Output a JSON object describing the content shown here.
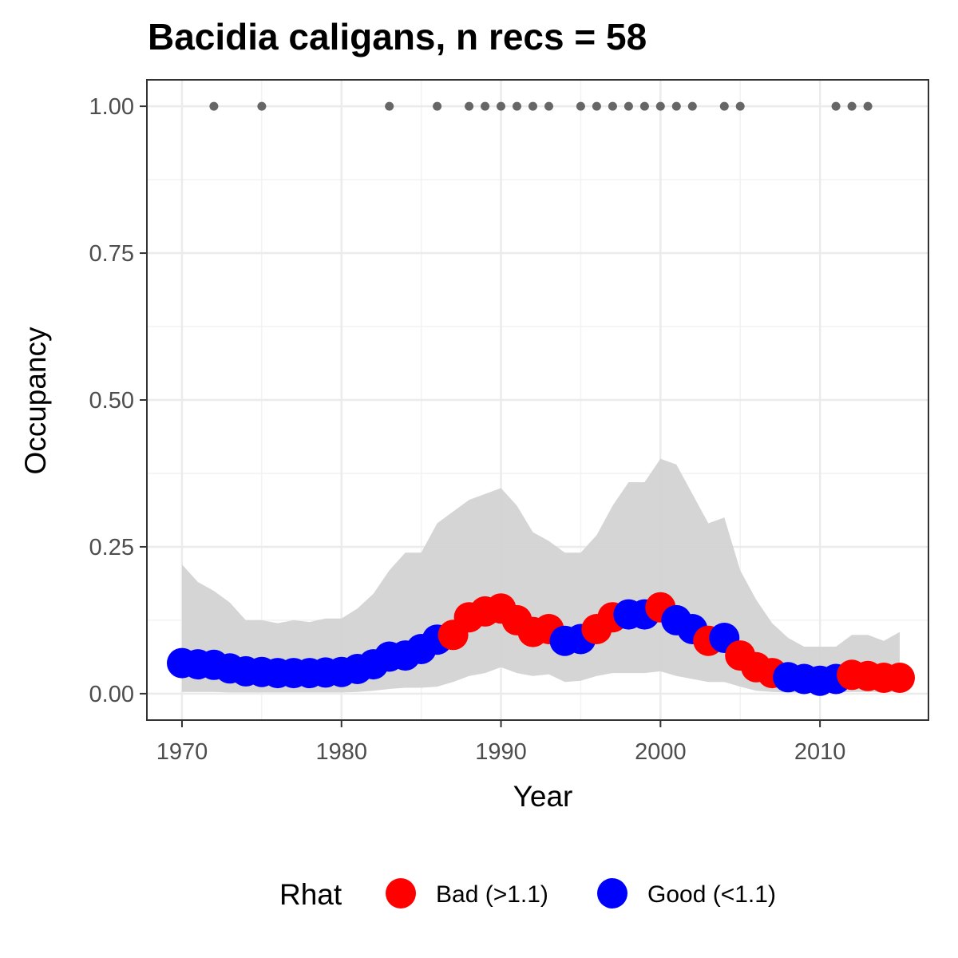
{
  "chart_data": {
    "type": "scatter",
    "title": "Bacidia caligans, n recs = 58",
    "xlabel": "Year",
    "ylabel": "Occupancy",
    "xlim": [
      1967.8,
      2016.8
    ],
    "ylim": [
      -0.045,
      1.045
    ],
    "x_ticks": [
      1970,
      1980,
      1990,
      2000,
      2010
    ],
    "x_tick_labels": [
      "1970",
      "1980",
      "1990",
      "2000",
      "2010"
    ],
    "y_ticks": [
      0,
      0.25,
      0.5,
      0.75,
      1.0
    ],
    "y_tick_labels": [
      "0.00",
      "0.25",
      "0.50",
      "0.75",
      "1.00"
    ],
    "grid": true,
    "legend": {
      "title": "Rhat",
      "position": "bottom",
      "entries": [
        {
          "label": "Bad (>1.1)",
          "color": "#ff0000"
        },
        {
          "label": "Good (<1.1)",
          "color": "#0000ff"
        }
      ]
    },
    "colors": {
      "bad": "#ff0000",
      "good": "#0000ff",
      "ribbon": "#d3d3d3",
      "records": "#666666"
    },
    "records": {
      "y": 1.0,
      "years": [
        1972,
        1975,
        1983,
        1986,
        1988,
        1989,
        1990,
        1991,
        1992,
        1993,
        1995,
        1996,
        1997,
        1998,
        1999,
        2000,
        2001,
        2002,
        2004,
        2005,
        2011,
        2012,
        2013
      ]
    },
    "series": [
      {
        "name": "Occupancy",
        "years": [
          1970,
          1971,
          1972,
          1973,
          1974,
          1975,
          1976,
          1977,
          1978,
          1979,
          1980,
          1981,
          1982,
          1983,
          1984,
          1985,
          1986,
          1987,
          1988,
          1989,
          1990,
          1991,
          1992,
          1993,
          1994,
          1995,
          1996,
          1997,
          1998,
          1999,
          2000,
          2001,
          2002,
          2003,
          2004,
          2005,
          2006,
          2007,
          2008,
          2009,
          2010,
          2011,
          2012,
          2013,
          2014,
          2015
        ],
        "values": [
          0.052,
          0.05,
          0.049,
          0.043,
          0.038,
          0.037,
          0.035,
          0.035,
          0.035,
          0.036,
          0.037,
          0.042,
          0.05,
          0.063,
          0.065,
          0.076,
          0.092,
          0.1,
          0.13,
          0.14,
          0.145,
          0.125,
          0.105,
          0.11,
          0.09,
          0.093,
          0.11,
          0.13,
          0.135,
          0.135,
          0.147,
          0.125,
          0.11,
          0.09,
          0.095,
          0.065,
          0.045,
          0.035,
          0.028,
          0.025,
          0.022,
          0.025,
          0.032,
          0.03,
          0.027,
          0.027
        ],
        "rhat": [
          "good",
          "good",
          "good",
          "good",
          "good",
          "good",
          "good",
          "good",
          "good",
          "good",
          "good",
          "good",
          "good",
          "good",
          "good",
          "good",
          "good",
          "bad",
          "bad",
          "bad",
          "bad",
          "bad",
          "bad",
          "bad",
          "good",
          "good",
          "bad",
          "bad",
          "good",
          "good",
          "bad",
          "good",
          "good",
          "bad",
          "good",
          "bad",
          "bad",
          "bad",
          "good",
          "good",
          "good",
          "good",
          "bad",
          "bad",
          "bad",
          "bad"
        ],
        "lower": [
          0.003,
          0.003,
          0.003,
          0.002,
          0.002,
          0.002,
          0.002,
          0.002,
          0.002,
          0.002,
          0.002,
          0.003,
          0.005,
          0.008,
          0.01,
          0.01,
          0.012,
          0.02,
          0.03,
          0.035,
          0.045,
          0.035,
          0.03,
          0.033,
          0.02,
          0.022,
          0.03,
          0.035,
          0.035,
          0.035,
          0.038,
          0.03,
          0.025,
          0.02,
          0.02,
          0.012,
          0.005,
          0.003,
          0.002,
          0.002,
          0.002,
          0.002,
          0.003,
          0.003,
          0.003,
          0.003
        ],
        "upper": [
          0.22,
          0.19,
          0.175,
          0.155,
          0.125,
          0.125,
          0.12,
          0.125,
          0.122,
          0.128,
          0.128,
          0.145,
          0.17,
          0.21,
          0.24,
          0.24,
          0.29,
          0.31,
          0.33,
          0.34,
          0.35,
          0.32,
          0.275,
          0.26,
          0.24,
          0.24,
          0.27,
          0.32,
          0.36,
          0.36,
          0.4,
          0.39,
          0.34,
          0.29,
          0.3,
          0.21,
          0.16,
          0.12,
          0.095,
          0.08,
          0.08,
          0.08,
          0.1,
          0.1,
          0.09,
          0.105
        ]
      }
    ]
  }
}
